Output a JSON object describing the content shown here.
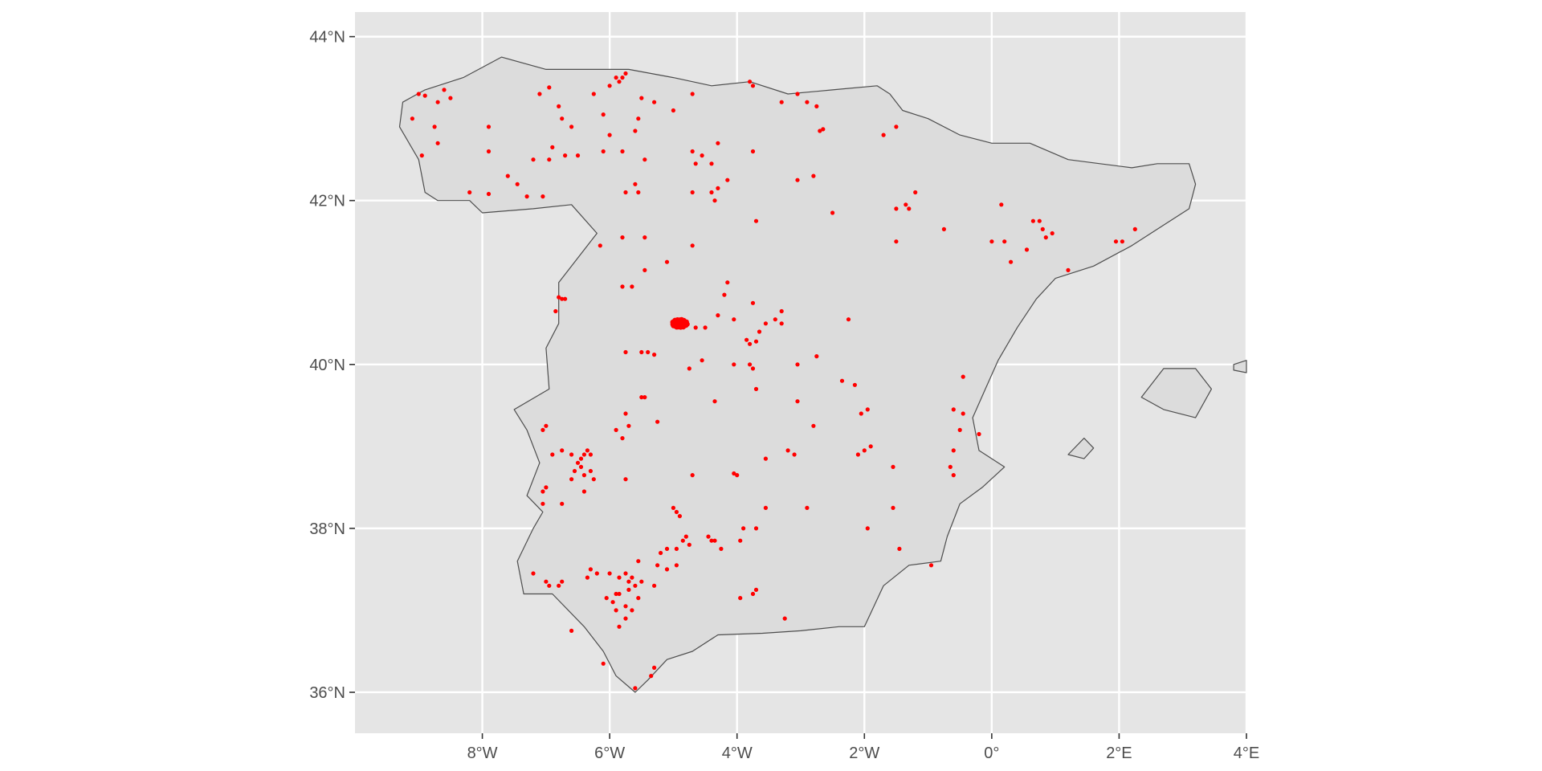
{
  "map": {
    "type": "scatter",
    "title": "",
    "xlabel": "",
    "ylabel": "",
    "grid": true,
    "background_color": "#e5e5e5",
    "land_color": "#dcdcdc",
    "point_color": "#ff0000",
    "xlim": [
      -10,
      4
    ],
    "ylim": [
      35.5,
      44.3
    ],
    "x_ticks": [
      {
        "value": -8,
        "label": "8°W"
      },
      {
        "value": -6,
        "label": "6°W"
      },
      {
        "value": -4,
        "label": "4°W"
      },
      {
        "value": -2,
        "label": "2°W"
      },
      {
        "value": 0,
        "label": "0°"
      },
      {
        "value": 2,
        "label": "2°E"
      },
      {
        "value": 4,
        "label": "4°E"
      }
    ],
    "y_ticks": [
      {
        "value": 36,
        "label": "36°N"
      },
      {
        "value": 38,
        "label": "38°N"
      },
      {
        "value": 40,
        "label": "40°N"
      },
      {
        "value": 42,
        "label": "42°N"
      },
      {
        "value": 44,
        "label": "44°N"
      }
    ],
    "land": [
      {
        "name": "iberian-peninsula",
        "coords": [
          [
            -9.3,
            42.9
          ],
          [
            -9.25,
            43.2
          ],
          [
            -8.9,
            43.35
          ],
          [
            -8.3,
            43.5
          ],
          [
            -7.7,
            43.75
          ],
          [
            -7.0,
            43.6
          ],
          [
            -6.2,
            43.6
          ],
          [
            -5.7,
            43.6
          ],
          [
            -5.0,
            43.5
          ],
          [
            -4.4,
            43.4
          ],
          [
            -3.8,
            43.45
          ],
          [
            -3.2,
            43.3
          ],
          [
            -2.5,
            43.35
          ],
          [
            -1.8,
            43.4
          ],
          [
            -1.6,
            43.3
          ],
          [
            -1.4,
            43.1
          ],
          [
            -1.0,
            43.0
          ],
          [
            -0.5,
            42.8
          ],
          [
            0.0,
            42.7
          ],
          [
            0.6,
            42.7
          ],
          [
            1.2,
            42.5
          ],
          [
            1.7,
            42.45
          ],
          [
            2.2,
            42.4
          ],
          [
            2.6,
            42.45
          ],
          [
            3.1,
            42.45
          ],
          [
            3.2,
            42.2
          ],
          [
            3.1,
            41.9
          ],
          [
            2.7,
            41.7
          ],
          [
            2.2,
            41.45
          ],
          [
            1.6,
            41.2
          ],
          [
            1.0,
            41.05
          ],
          [
            0.7,
            40.8
          ],
          [
            0.4,
            40.45
          ],
          [
            0.1,
            40.05
          ],
          [
            -0.1,
            39.7
          ],
          [
            -0.3,
            39.35
          ],
          [
            -0.2,
            38.95
          ],
          [
            0.2,
            38.75
          ],
          [
            -0.15,
            38.5
          ],
          [
            -0.5,
            38.3
          ],
          [
            -0.7,
            37.9
          ],
          [
            -0.8,
            37.6
          ],
          [
            -1.3,
            37.55
          ],
          [
            -1.7,
            37.3
          ],
          [
            -2.0,
            36.8
          ],
          [
            -2.4,
            36.8
          ],
          [
            -3.0,
            36.75
          ],
          [
            -3.6,
            36.72
          ],
          [
            -4.3,
            36.7
          ],
          [
            -4.7,
            36.5
          ],
          [
            -5.1,
            36.4
          ],
          [
            -5.4,
            36.15
          ],
          [
            -5.6,
            36.0
          ],
          [
            -5.9,
            36.2
          ],
          [
            -6.1,
            36.5
          ],
          [
            -6.4,
            36.8
          ],
          [
            -6.9,
            37.2
          ],
          [
            -7.35,
            37.2
          ],
          [
            -7.45,
            37.6
          ],
          [
            -7.2,
            38.0
          ],
          [
            -7.05,
            38.2
          ],
          [
            -7.3,
            38.4
          ],
          [
            -7.1,
            38.8
          ],
          [
            -7.3,
            39.2
          ],
          [
            -7.5,
            39.45
          ],
          [
            -6.95,
            39.7
          ],
          [
            -7.0,
            40.2
          ],
          [
            -6.8,
            40.5
          ],
          [
            -6.8,
            41.0
          ],
          [
            -6.2,
            41.6
          ],
          [
            -6.6,
            41.95
          ],
          [
            -7.2,
            41.9
          ],
          [
            -8.0,
            41.85
          ],
          [
            -8.2,
            42.0
          ],
          [
            -8.7,
            42.0
          ],
          [
            -8.9,
            42.1
          ],
          [
            -9.0,
            42.5
          ],
          [
            -9.3,
            42.9
          ]
        ]
      },
      {
        "name": "mallorca",
        "coords": [
          [
            2.35,
            39.6
          ],
          [
            2.7,
            39.95
          ],
          [
            3.2,
            39.95
          ],
          [
            3.45,
            39.7
          ],
          [
            3.2,
            39.35
          ],
          [
            2.7,
            39.45
          ],
          [
            2.35,
            39.6
          ]
        ]
      },
      {
        "name": "menorca",
        "coords": [
          [
            3.8,
            40.0
          ],
          [
            4.0,
            40.05
          ],
          [
            4.0,
            39.9
          ],
          [
            3.8,
            39.93
          ],
          [
            3.8,
            40.0
          ]
        ]
      },
      {
        "name": "ibiza",
        "coords": [
          [
            1.2,
            38.9
          ],
          [
            1.45,
            39.1
          ],
          [
            1.6,
            38.98
          ],
          [
            1.45,
            38.85
          ],
          [
            1.2,
            38.9
          ]
        ]
      }
    ],
    "clusters": [
      {
        "name": "dense-cluster",
        "center": [
          -4.9,
          40.5
        ],
        "spread": [
          0.12,
          0.05
        ],
        "count": 70
      }
    ],
    "points": [
      [
        -9.0,
        43.3
      ],
      [
        -8.9,
        43.28
      ],
      [
        -8.7,
        43.2
      ],
      [
        -8.6,
        43.35
      ],
      [
        -9.1,
        43.0
      ],
      [
        -8.75,
        42.9
      ],
      [
        -8.7,
        42.7
      ],
      [
        -8.95,
        42.55
      ],
      [
        -8.5,
        43.25
      ],
      [
        -7.9,
        42.9
      ],
      [
        -7.9,
        42.6
      ],
      [
        -7.6,
        42.3
      ],
      [
        -7.45,
        42.2
      ],
      [
        -7.2,
        42.5
      ],
      [
        -7.3,
        42.05
      ],
      [
        -7.05,
        42.05
      ],
      [
        -7.9,
        42.08
      ],
      [
        -8.2,
        42.1
      ],
      [
        -7.1,
        43.3
      ],
      [
        -6.95,
        43.38
      ],
      [
        -6.8,
        43.15
      ],
      [
        -6.75,
        43.0
      ],
      [
        -6.6,
        42.9
      ],
      [
        -6.9,
        42.65
      ],
      [
        -6.7,
        42.55
      ],
      [
        -6.5,
        42.55
      ],
      [
        -6.95,
        42.5
      ],
      [
        -6.25,
        43.3
      ],
      [
        -6.0,
        43.4
      ],
      [
        -5.9,
        43.5
      ],
      [
        -5.8,
        43.5
      ],
      [
        -5.75,
        43.55
      ],
      [
        -5.85,
        43.45
      ],
      [
        -5.5,
        43.25
      ],
      [
        -5.3,
        43.2
      ],
      [
        -5.0,
        43.1
      ],
      [
        -6.1,
        43.05
      ],
      [
        -6.0,
        42.8
      ],
      [
        -6.1,
        42.6
      ],
      [
        -5.8,
        42.6
      ],
      [
        -5.6,
        42.85
      ],
      [
        -5.55,
        43.0
      ],
      [
        -5.45,
        42.5
      ],
      [
        -5.6,
        42.2
      ],
      [
        -5.55,
        42.1
      ],
      [
        -5.75,
        42.1
      ],
      [
        -4.7,
        42.6
      ],
      [
        -4.65,
        42.45
      ],
      [
        -4.55,
        42.55
      ],
      [
        -4.4,
        42.45
      ],
      [
        -4.3,
        42.7
      ],
      [
        -4.3,
        42.15
      ],
      [
        -4.4,
        42.1
      ],
      [
        -4.35,
        42.0
      ],
      [
        -4.15,
        42.25
      ],
      [
        -4.7,
        42.1
      ],
      [
        -4.7,
        43.3
      ],
      [
        -3.8,
        43.45
      ],
      [
        -3.75,
        43.4
      ],
      [
        -3.3,
        43.2
      ],
      [
        -3.05,
        43.3
      ],
      [
        -2.9,
        43.2
      ],
      [
        -2.75,
        43.15
      ],
      [
        -2.7,
        42.85
      ],
      [
        -2.65,
        42.87
      ],
      [
        -3.75,
        42.6
      ],
      [
        -3.05,
        42.25
      ],
      [
        -2.8,
        42.3
      ],
      [
        -2.5,
        41.85
      ],
      [
        -3.7,
        41.75
      ],
      [
        -1.7,
        42.8
      ],
      [
        -1.5,
        42.9
      ],
      [
        -1.5,
        41.9
      ],
      [
        -1.35,
        41.95
      ],
      [
        -1.3,
        41.9
      ],
      [
        -1.2,
        42.1
      ],
      [
        -1.5,
        41.5
      ],
      [
        -0.75,
        41.65
      ],
      [
        0.15,
        41.95
      ],
      [
        0.0,
        41.5
      ],
      [
        0.2,
        41.5
      ],
      [
        0.3,
        41.25
      ],
      [
        0.55,
        41.4
      ],
      [
        0.65,
        41.75
      ],
      [
        0.75,
        41.75
      ],
      [
        0.8,
        41.65
      ],
      [
        0.85,
        41.55
      ],
      [
        0.95,
        41.6
      ],
      [
        1.2,
        41.15
      ],
      [
        1.95,
        41.5
      ],
      [
        2.05,
        41.5
      ],
      [
        2.25,
        41.65
      ],
      [
        -6.15,
        41.45
      ],
      [
        -5.8,
        41.55
      ],
      [
        -5.45,
        41.55
      ],
      [
        -5.1,
        41.25
      ],
      [
        -5.45,
        41.15
      ],
      [
        -4.7,
        41.45
      ],
      [
        -5.8,
        40.95
      ],
      [
        -5.65,
        40.95
      ],
      [
        -4.15,
        41.0
      ],
      [
        -4.2,
        40.85
      ],
      [
        -3.75,
        40.75
      ],
      [
        -6.8,
        40.82
      ],
      [
        -6.75,
        40.8
      ],
      [
        -6.7,
        40.8
      ],
      [
        -6.85,
        40.65
      ],
      [
        -4.5,
        40.45
      ],
      [
        -4.65,
        40.45
      ],
      [
        -4.3,
        40.6
      ],
      [
        -4.05,
        40.55
      ],
      [
        -3.85,
        40.3
      ],
      [
        -3.8,
        40.25
      ],
      [
        -3.7,
        40.28
      ],
      [
        -3.65,
        40.4
      ],
      [
        -3.55,
        40.5
      ],
      [
        -3.4,
        40.55
      ],
      [
        -3.3,
        40.65
      ],
      [
        -3.3,
        40.5
      ],
      [
        -2.25,
        40.55
      ],
      [
        -5.75,
        40.15
      ],
      [
        -5.5,
        40.15
      ],
      [
        -5.4,
        40.15
      ],
      [
        -5.3,
        40.12
      ],
      [
        -4.75,
        39.95
      ],
      [
        -4.55,
        40.05
      ],
      [
        -4.05,
        40.0
      ],
      [
        -3.8,
        40.0
      ],
      [
        -3.75,
        39.95
      ],
      [
        -3.7,
        39.7
      ],
      [
        -3.05,
        40.0
      ],
      [
        -2.75,
        40.1
      ],
      [
        -5.5,
        39.6
      ],
      [
        -5.45,
        39.6
      ],
      [
        -5.25,
        39.3
      ],
      [
        -4.35,
        39.55
      ],
      [
        -3.05,
        39.55
      ],
      [
        -2.35,
        39.8
      ],
      [
        -2.15,
        39.75
      ],
      [
        -2.05,
        39.4
      ],
      [
        -1.95,
        39.45
      ],
      [
        -2.8,
        39.25
      ],
      [
        -7.0,
        39.25
      ],
      [
        -7.05,
        39.2
      ],
      [
        -6.9,
        38.9
      ],
      [
        -6.75,
        38.95
      ],
      [
        -6.6,
        38.9
      ],
      [
        -6.45,
        38.85
      ],
      [
        -6.4,
        38.9
      ],
      [
        -6.35,
        38.95
      ],
      [
        -6.3,
        38.9
      ],
      [
        -6.5,
        38.8
      ],
      [
        -6.45,
        38.75
      ],
      [
        -6.55,
        38.7
      ],
      [
        -6.4,
        38.65
      ],
      [
        -6.3,
        38.7
      ],
      [
        -6.25,
        38.6
      ],
      [
        -6.6,
        38.6
      ],
      [
        -7.05,
        38.45
      ],
      [
        -7.0,
        38.5
      ],
      [
        -7.05,
        38.3
      ],
      [
        -6.75,
        38.3
      ],
      [
        -6.4,
        38.45
      ],
      [
        -5.8,
        39.1
      ],
      [
        -5.7,
        39.25
      ],
      [
        -5.75,
        39.4
      ],
      [
        -5.75,
        38.6
      ],
      [
        -5.9,
        39.2
      ],
      [
        -4.0,
        38.65
      ],
      [
        -4.05,
        38.67
      ],
      [
        -3.55,
        38.85
      ],
      [
        -3.2,
        38.95
      ],
      [
        -3.1,
        38.9
      ],
      [
        -2.1,
        38.9
      ],
      [
        -2.0,
        38.95
      ],
      [
        -1.9,
        39.0
      ],
      [
        -1.55,
        38.75
      ],
      [
        -0.45,
        39.85
      ],
      [
        -0.6,
        39.45
      ],
      [
        -0.45,
        39.4
      ],
      [
        -0.5,
        39.2
      ],
      [
        -0.6,
        38.95
      ],
      [
        -0.65,
        38.75
      ],
      [
        -0.6,
        38.65
      ],
      [
        -0.2,
        39.15
      ],
      [
        -5.0,
        38.25
      ],
      [
        -4.95,
        38.2
      ],
      [
        -4.9,
        38.15
      ],
      [
        -4.7,
        38.65
      ],
      [
        -3.55,
        38.25
      ],
      [
        -2.9,
        38.25
      ],
      [
        -1.55,
        38.25
      ],
      [
        -1.95,
        38.0
      ],
      [
        -1.45,
        37.75
      ],
      [
        -0.95,
        37.55
      ],
      [
        -4.8,
        37.9
      ],
      [
        -4.85,
        37.85
      ],
      [
        -4.75,
        37.8
      ],
      [
        -4.95,
        37.75
      ],
      [
        -5.1,
        37.75
      ],
      [
        -5.2,
        37.7
      ],
      [
        -5.25,
        37.55
      ],
      [
        -5.1,
        37.5
      ],
      [
        -4.95,
        37.55
      ],
      [
        -4.45,
        37.9
      ],
      [
        -4.35,
        37.85
      ],
      [
        -4.25,
        37.75
      ],
      [
        -3.95,
        37.85
      ],
      [
        -3.9,
        38.0
      ],
      [
        -3.7,
        38.0
      ],
      [
        -4.4,
        37.85
      ],
      [
        -6.3,
        37.5
      ],
      [
        -6.35,
        37.4
      ],
      [
        -6.2,
        37.45
      ],
      [
        -6.0,
        37.45
      ],
      [
        -5.85,
        37.4
      ],
      [
        -5.75,
        37.45
      ],
      [
        -5.7,
        37.35
      ],
      [
        -5.65,
        37.4
      ],
      [
        -5.6,
        37.3
      ],
      [
        -5.7,
        37.25
      ],
      [
        -5.85,
        37.2
      ],
      [
        -5.95,
        37.1
      ],
      [
        -5.9,
        37.0
      ],
      [
        -5.75,
        36.9
      ],
      [
        -5.85,
        36.8
      ],
      [
        -5.65,
        37.0
      ],
      [
        -5.55,
        37.15
      ],
      [
        -5.5,
        37.35
      ],
      [
        -5.3,
        37.3
      ],
      [
        -5.75,
        37.05
      ],
      [
        -6.8,
        37.3
      ],
      [
        -6.75,
        37.35
      ],
      [
        -6.95,
        37.3
      ],
      [
        -7.0,
        37.35
      ],
      [
        -7.2,
        37.45
      ],
      [
        -6.6,
        36.75
      ],
      [
        -6.1,
        36.35
      ],
      [
        -5.35,
        36.2
      ],
      [
        -5.3,
        36.3
      ],
      [
        -5.6,
        36.05
      ],
      [
        -3.95,
        37.15
      ],
      [
        -3.75,
        37.2
      ],
      [
        -3.7,
        37.25
      ],
      [
        -3.25,
        36.9
      ],
      [
        -5.55,
        37.6
      ],
      [
        -5.9,
        37.2
      ],
      [
        -6.05,
        37.15
      ]
    ]
  }
}
